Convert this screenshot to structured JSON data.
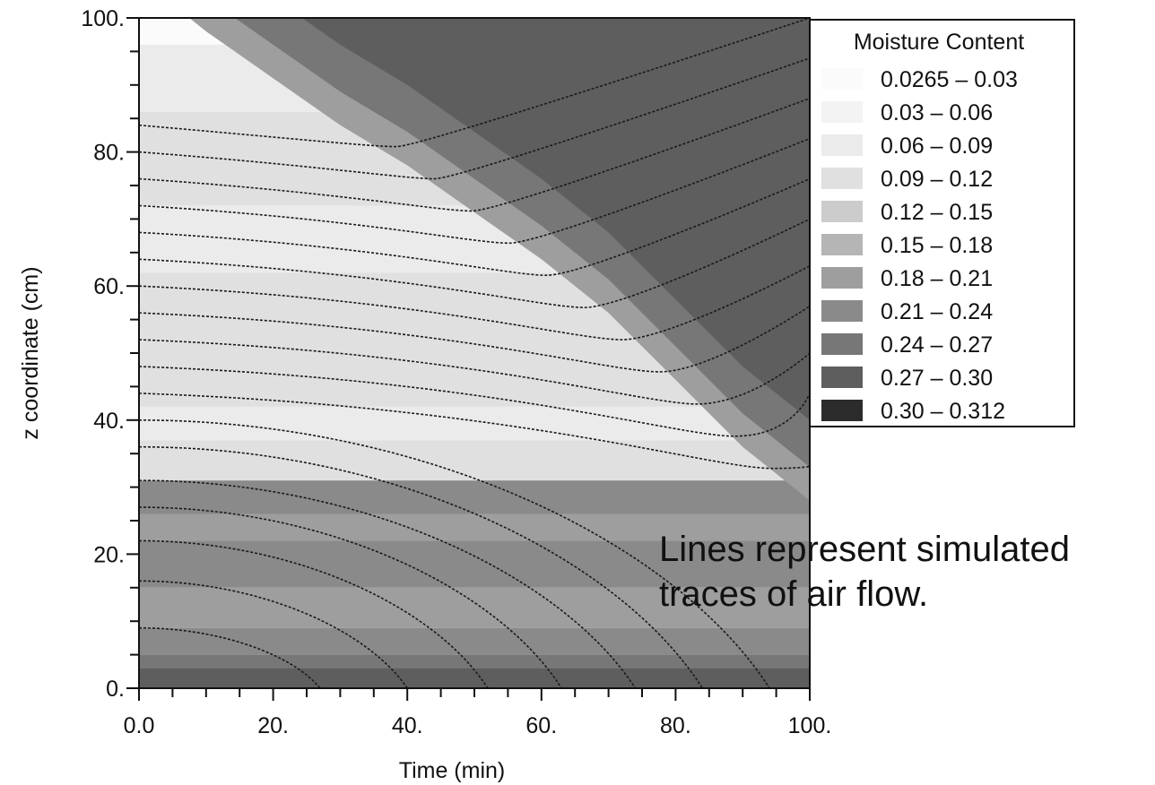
{
  "chart_data": {
    "type": "heatmap",
    "xlabel": "Time (min)",
    "ylabel": "z coordinate (cm)",
    "xlim": [
      0,
      100
    ],
    "ylim": [
      0,
      100
    ],
    "x_ticks": [
      "0.0",
      "20.",
      "40.",
      "60.",
      "80.",
      "100."
    ],
    "y_ticks": [
      "0.",
      "20.",
      "40.",
      "60.",
      "80.",
      "100."
    ],
    "legend": {
      "title": "Moisture Content",
      "placement": "top-right",
      "items": [
        {
          "label": "0.0265 – 0.03",
          "color": "#fbfbfb"
        },
        {
          "label": "0.03 – 0.06",
          "color": "#f3f3f3"
        },
        {
          "label": "0.06 – 0.09",
          "color": "#ebebeb"
        },
        {
          "label": "0.09 – 0.12",
          "color": "#e0e0e0"
        },
        {
          "label": "0.12 – 0.15",
          "color": "#cccccc"
        },
        {
          "label": "0.15 – 0.18",
          "color": "#b5b5b5"
        },
        {
          "label": "0.18 – 0.21",
          "color": "#9e9e9e"
        },
        {
          "label": "0.21 – 0.24",
          "color": "#8a8a8a"
        },
        {
          "label": "0.24 – 0.27",
          "color": "#777777"
        },
        {
          "label": "0.27 – 0.30",
          "color": "#5e5e5e"
        },
        {
          "label": "0.30 – 0.312",
          "color": "#2c2c2c"
        }
      ]
    },
    "wetting_front": [
      [
        0,
        100
      ],
      [
        5,
        96
      ],
      [
        10,
        92
      ],
      [
        20,
        85
      ],
      [
        30,
        78
      ],
      [
        40,
        72
      ],
      [
        50,
        65
      ],
      [
        60,
        58
      ],
      [
        70,
        50
      ],
      [
        80,
        40
      ],
      [
        90,
        30
      ],
      [
        100,
        22
      ]
    ],
    "trace_lines_bottom": [
      {
        "z0": 9,
        "x_end": 27
      },
      {
        "z0": 16,
        "x_end": 40
      },
      {
        "z0": 22,
        "x_end": 52
      },
      {
        "z0": 27,
        "x_end": 63
      },
      {
        "z0": 31,
        "x_end": 74
      },
      {
        "z0": 36,
        "x_end": 84
      },
      {
        "z0": 40,
        "x_end": 94
      }
    ],
    "trace_lines_right": [
      {
        "z0": 44,
        "z_end": 34
      },
      {
        "z0": 48,
        "z_end": 44
      },
      {
        "z0": 52,
        "z_end": 50
      },
      {
        "z0": 56,
        "z_end": 57
      },
      {
        "z0": 60,
        "z_end": 63
      },
      {
        "z0": 64,
        "z_end": 70
      },
      {
        "z0": 68,
        "z_end": 76
      },
      {
        "z0": 72,
        "z_end": 82
      },
      {
        "z0": 76,
        "z_end": 88
      },
      {
        "z0": 80,
        "z_end": 94
      },
      {
        "z0": 84,
        "z_end": 100
      }
    ],
    "annotation": "Lines represent simulated traces of air flow."
  }
}
